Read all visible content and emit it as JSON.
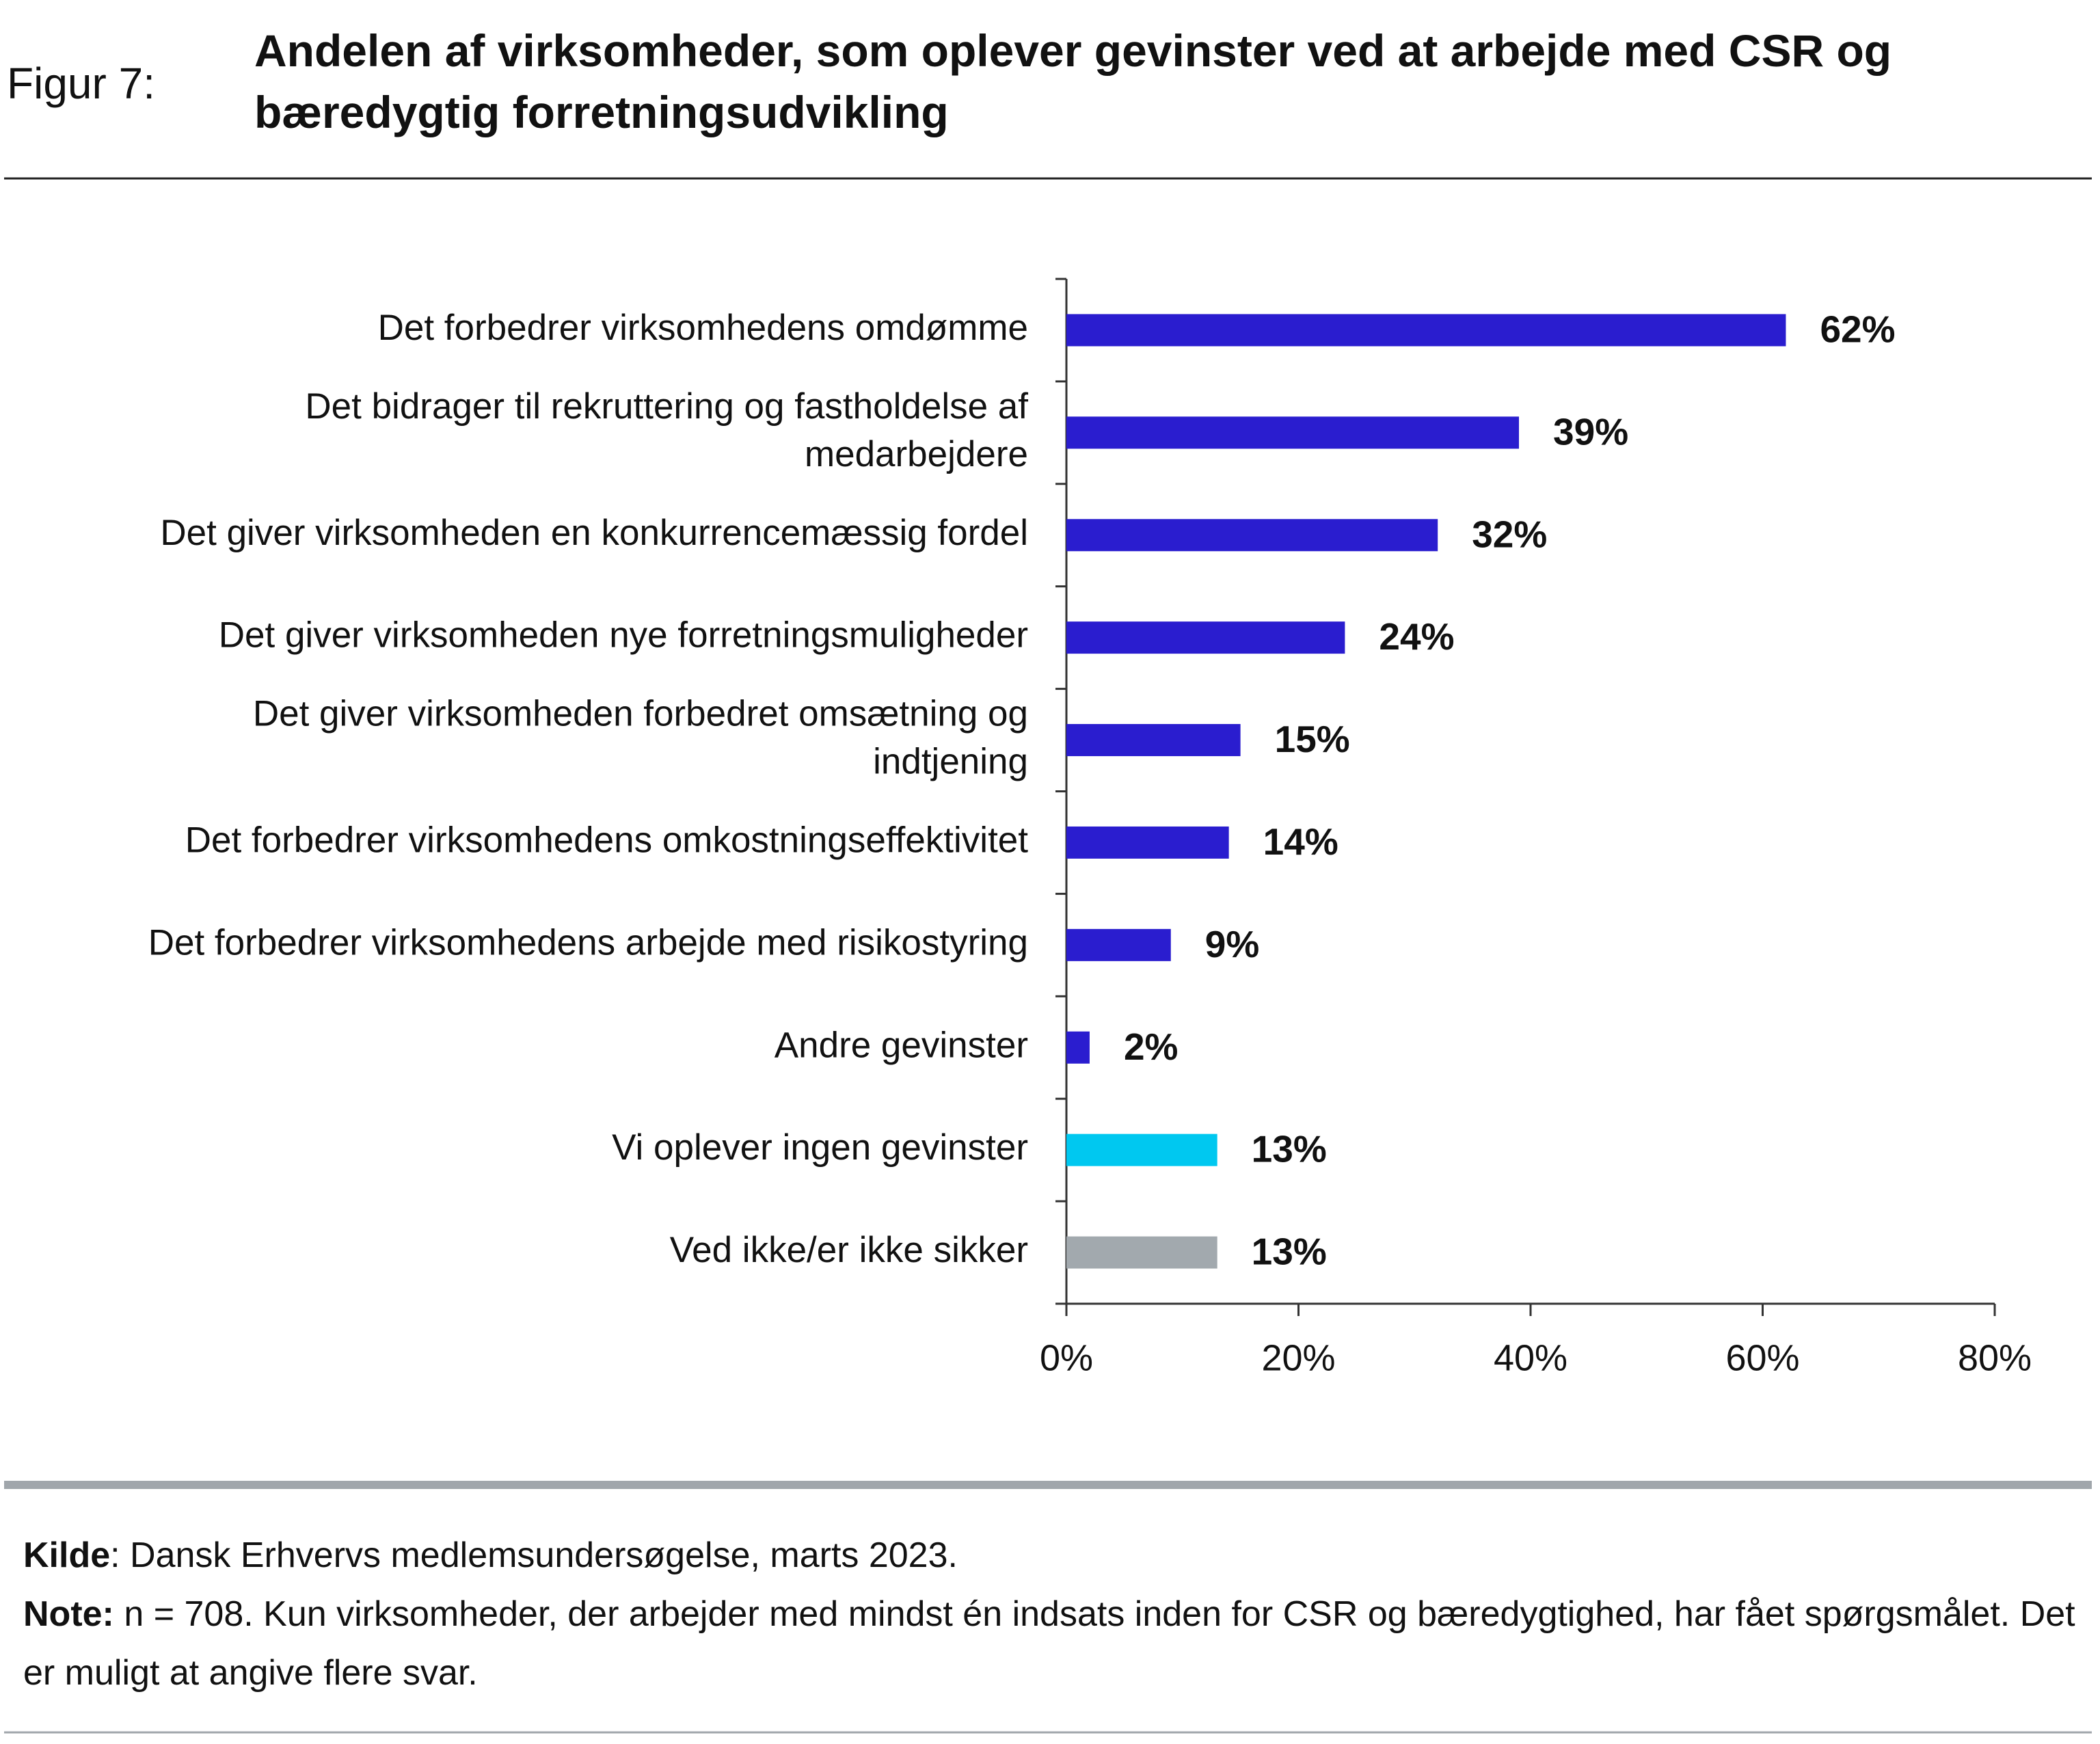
{
  "figure_label": "Figur 7:",
  "chart_data": {
    "type": "barh",
    "title": "Andelen af virksomheder, som oplever gevinster ved at arbejde med CSR og bæredygtig forretningsudvikling",
    "categories": [
      "Det forbedrer virksomhedens omdømme",
      "Det bidrager til rekruttering og fastholdelse af medarbejdere",
      "Det giver virksomheden en konkurrencemæssig fordel",
      "Det giver virksomheden nye forretningsmuligheder",
      "Det giver virksomheden forbedret omsætning og indtjening",
      "Det forbedrer virksomhedens omkostningseffektivitet",
      "Det forbedrer virksomhedens arbejde med risikostyring",
      "Andre gevinster",
      "Vi oplever ingen gevinster",
      "Ved ikke/er ikke sikker"
    ],
    "values": [
      62,
      39,
      32,
      24,
      15,
      14,
      9,
      2,
      13,
      13
    ],
    "value_labels": [
      "62%",
      "39%",
      "32%",
      "24%",
      "15%",
      "14%",
      "9%",
      "2%",
      "13%",
      "13%"
    ],
    "colors": [
      "#2a1dcf",
      "#2a1dcf",
      "#2a1dcf",
      "#2a1dcf",
      "#2a1dcf",
      "#2a1dcf",
      "#2a1dcf",
      "#2a1dcf",
      "#00c8f0",
      "#a2a9ae"
    ],
    "xlim": [
      0,
      80
    ],
    "xticks": [
      {
        "value": 0,
        "label": "0%"
      },
      {
        "value": 20,
        "label": "20%"
      },
      {
        "value": 40,
        "label": "40%"
      },
      {
        "value": 60,
        "label": "60%"
      },
      {
        "value": 80,
        "label": "80%"
      }
    ]
  },
  "footer": {
    "source_label": "Kilde",
    "source": ": Dansk Erhvervs medlemsundersøgelse, marts 2023.",
    "note_label": "Note:",
    "note": " n = 708. Kun virksomheder, der arbejder med mindst én indsats inden for CSR og bæredygtighed, har fået spørgsmålet. Det er muligt at angive flere svar."
  }
}
